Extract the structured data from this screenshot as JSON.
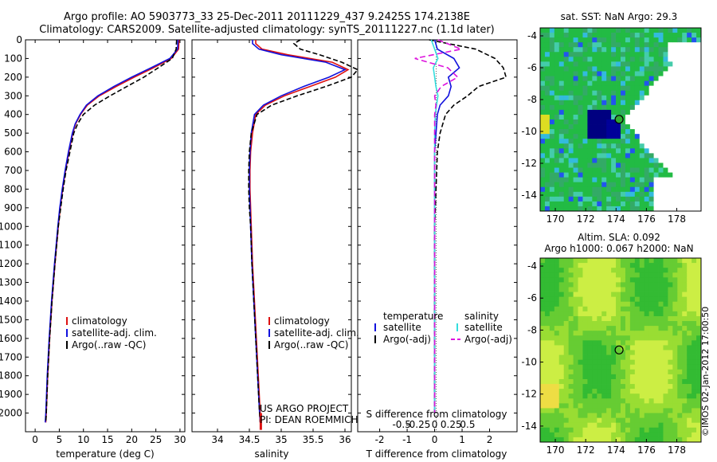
{
  "title_line1": "Argo profile: AO 5903773_33 25-Dec-2011 20111229_437 9.2425S 174.2138E",
  "title_line2": "Climatology: CARS2009. Satellite-adjusted climatology: synTS_20111227.nc (1.1d later)",
  "sst_title": "sat. SST: NaN Argo: 29.3",
  "sla_title1": "Altim. SLA: 0.092",
  "sla_title2": "Argo h1000: 0.067 h2000: NaN",
  "project_line1": "US ARGO PROJECT",
  "project_line2": "PI: DEAN ROEMMICH",
  "side_stamp": "©IMOS 02-Jan-2012 17:00:50",
  "colors": {
    "climatology": "#dd1111",
    "satellite": "#1111dd",
    "argo": "#000000",
    "sal_satellite": "#33dddd",
    "sal_argo": "#dd11dd"
  },
  "chart_data": [
    {
      "type": "line",
      "xlabel": "temperature (deg C)",
      "ylabel": "",
      "xlim": [
        -2,
        31
      ],
      "ylim": [
        2100,
        0
      ],
      "xticks": [
        "0",
        "5",
        "10",
        "15",
        "20",
        "25",
        "30"
      ],
      "yticks": [
        "0",
        "100",
        "200",
        "300",
        "400",
        "500",
        "600",
        "700",
        "800",
        "900",
        "1000",
        "1100",
        "1200",
        "1300",
        "1400",
        "1500",
        "1600",
        "1700",
        "1800",
        "1900",
        "2000"
      ],
      "legend": [
        "climatology",
        "satellite-adj. clim.",
        "Argo(..raw -QC)"
      ],
      "depth": [
        0,
        50,
        100,
        150,
        200,
        250,
        300,
        350,
        400,
        450,
        500,
        600,
        700,
        800,
        900,
        1000,
        1200,
        1400,
        1600,
        1800,
        2000,
        2050
      ],
      "series": [
        {
          "name": "climatology",
          "values": [
            29.8,
            29.7,
            28.2,
            24.5,
            20.5,
            16.8,
            13.3,
            10.8,
            9.4,
            8.4,
            7.8,
            7.0,
            6.3,
            5.7,
            5.2,
            4.8,
            4.1,
            3.5,
            3.0,
            2.6,
            2.3,
            2.2
          ]
        },
        {
          "name": "satellite-adj. clim.",
          "values": [
            29.6,
            29.5,
            27.9,
            24.0,
            20.0,
            16.3,
            13.0,
            10.6,
            9.3,
            8.3,
            7.7,
            6.9,
            6.2,
            5.6,
            5.1,
            4.7,
            4.0,
            3.4,
            2.9,
            2.5,
            2.2,
            2.1
          ]
        },
        {
          "name": "Argo(..raw -QC)",
          "values": [
            29.3,
            29.2,
            28.4,
            25.5,
            22.5,
            19.0,
            15.5,
            12.3,
            10.0,
            8.8,
            8.0,
            7.2,
            6.4,
            5.8,
            5.3,
            4.8,
            4.1,
            3.5,
            3.0,
            2.6,
            2.3,
            2.2
          ]
        }
      ]
    },
    {
      "type": "line",
      "xlabel": "salinity",
      "xlim": [
        33.6,
        36.1
      ],
      "ylim": [
        2100,
        0
      ],
      "xticks": [
        "34",
        "34.5",
        "35",
        "35.5",
        "36"
      ],
      "legend": [
        "climatology",
        "satellite-adj. clim.",
        "Argo(..raw -QC)"
      ],
      "depth": [
        0,
        20,
        50,
        80,
        120,
        160,
        200,
        250,
        300,
        350,
        400,
        500,
        600,
        700,
        800,
        900,
        1000,
        1200,
        1400,
        1600,
        1800,
        2000,
        2050
      ],
      "series": [
        {
          "name": "climatology",
          "values": [
            34.6,
            34.6,
            34.7,
            35.1,
            35.8,
            36.05,
            35.85,
            35.45,
            35.05,
            34.75,
            34.6,
            34.55,
            34.52,
            34.51,
            34.51,
            34.52,
            34.53,
            34.55,
            34.58,
            34.61,
            34.64,
            34.67,
            34.68
          ]
        },
        {
          "name": "satellite-adj. clim.",
          "values": [
            34.55,
            34.55,
            34.65,
            35.0,
            35.7,
            36.0,
            35.75,
            35.35,
            35.0,
            34.72,
            34.58,
            34.53,
            34.51,
            34.5,
            34.5,
            34.51,
            34.52,
            34.54,
            34.57,
            34.6,
            34.63,
            34.66,
            34.67
          ]
        },
        {
          "name": "Argo(..raw -QC)",
          "values": [
            35.3,
            35.2,
            35.3,
            35.6,
            35.95,
            36.2,
            36.1,
            35.7,
            35.25,
            34.85,
            34.62,
            34.53,
            34.5,
            34.49,
            34.49,
            34.5,
            34.52,
            34.54,
            34.57,
            34.6,
            34.63,
            34.66,
            34.67
          ]
        }
      ]
    },
    {
      "type": "line",
      "xlabel": "T difference from climatology",
      "xlabel_top": "S difference from climatology",
      "xlim": [
        -2.8,
        3.0
      ],
      "ylim": [
        2100,
        0
      ],
      "xticks": [
        "-2",
        "-1",
        "0",
        "1",
        "2"
      ],
      "xticks_top": [
        "-0.5",
        "-0.25",
        "0",
        "0.25",
        "0.5"
      ],
      "legend_temperature": [
        "temperature",
        "satellite",
        "Argo(-adj)"
      ],
      "legend_salinity": [
        "salinity",
        "satellite",
        "Argo(-adj)"
      ],
      "depth": [
        0,
        50,
        100,
        150,
        200,
        250,
        300,
        350,
        400,
        500,
        600,
        800,
        1000,
        1500,
        2000
      ],
      "series": [
        {
          "name": "temperature satellite",
          "values": [
            0.0,
            0.1,
            0.7,
            0.9,
            0.5,
            0.6,
            0.5,
            0.2,
            0.1,
            0.05,
            0.0,
            0.0,
            0.0,
            0.0,
            0.0
          ]
        },
        {
          "name": "temperature Argo(-adj)",
          "values": [
            -0.2,
            1.5,
            2.2,
            2.5,
            2.6,
            1.6,
            1.2,
            0.7,
            0.4,
            0.2,
            0.1,
            0.05,
            0.0,
            0.0,
            0.0
          ]
        },
        {
          "name": "salinity satellite",
          "values": [
            -0.05,
            0.0,
            0.05,
            -0.02,
            0.0,
            0.02,
            0.05,
            0.03,
            0.01,
            0.0,
            0.0,
            0.0,
            0.0,
            0.0,
            0.0
          ]
        },
        {
          "name": "salinity Argo(-adj)",
          "values": [
            0.05,
            0.4,
            -0.3,
            0.2,
            0.35,
            0.1,
            0.0,
            0.02,
            0.0,
            0.0,
            0.0,
            0.0,
            0.0,
            0.0,
            0.0
          ]
        }
      ]
    },
    {
      "type": "heatmap",
      "title": "sat. SST: NaN Argo: 29.3",
      "xlim": [
        169,
        179.6
      ],
      "ylim": [
        -15,
        -3.5
      ],
      "xticks": [
        "170",
        "172",
        "174",
        "176",
        "178"
      ],
      "yticks": [
        "-4",
        "-6",
        "-8",
        "-10",
        "-12",
        "-14"
      ],
      "argo_position": [
        174.2,
        -9.24
      ]
    },
    {
      "type": "heatmap",
      "title": "Altim. SLA: 0.092",
      "subtitle": "Argo h1000: 0.067 h2000: NaN",
      "xlim": [
        169,
        179.6
      ],
      "ylim": [
        -15,
        -3.5
      ],
      "xticks": [
        "170",
        "172",
        "174",
        "176",
        "178"
      ],
      "yticks": [
        "-4",
        "-6",
        "-8",
        "-10",
        "-12",
        "-14"
      ],
      "argo_position": [
        174.2,
        -9.24
      ]
    }
  ]
}
